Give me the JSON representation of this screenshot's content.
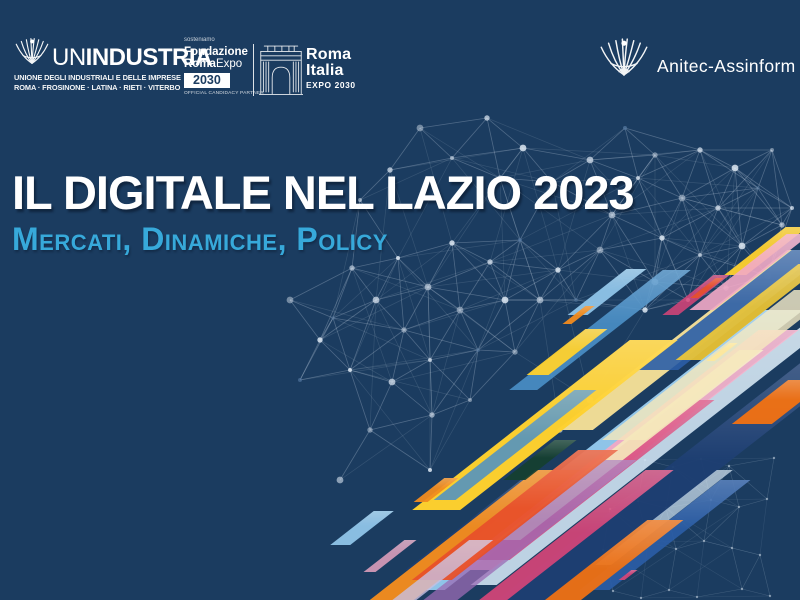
{
  "header": {
    "unindustria": {
      "name_light": "UN",
      "name_bold": "INDUSTRIA",
      "subtitle1": "UNIONE DEGLI INDUSTRIALI E DELLE IMPRESE",
      "subtitle2": "ROMA · FROSINONE · LATINA · RIETI · VITERBO"
    },
    "fondazione": {
      "support_label": "sosteniamo",
      "line1": "Fondazione",
      "line2_bold": "Roma",
      "line2_regular": "Expo",
      "year_badge": "2030",
      "partner_label": "OFFICIAL CANDIDACY PARTNER"
    },
    "expo": {
      "line1": "Roma",
      "line2": "Italia",
      "line3": "EXPO 2030"
    },
    "anitec": {
      "label": "Anitec-Assinform"
    }
  },
  "main": {
    "title": "IL DIGITALE NEL LAZIO 2023",
    "subtitle": "Mercati, Dinamiche, Policy"
  },
  "colors": {
    "background": "#1b3c60",
    "title_text": "#ffffff",
    "subtitle_text": "#37a9da",
    "network_line": "#c6d4e4",
    "stripe_palette": [
      "#f28c1e",
      "#ef7114",
      "#ffd12e",
      "#ffe89a",
      "#f6e9bc",
      "#8fc4e8",
      "#4a90c8",
      "#2b5ea8",
      "#1e3f72",
      "#f2a9c6",
      "#d94579",
      "#e8512a",
      "#c9c0e2",
      "#cfe3f2",
      "#15402f",
      "#37a9da",
      "#9b6bb5"
    ]
  }
}
